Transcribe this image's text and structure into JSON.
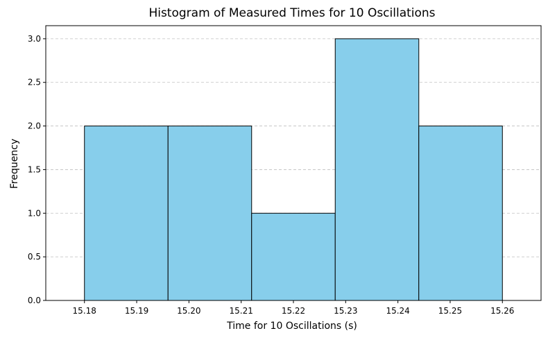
{
  "chart_data": {
    "type": "bar",
    "title": "Histogram of Measured Times for 10 Oscillations",
    "xlabel": "Time for 10 Oscillations (s)",
    "ylabel": "Frequency",
    "bins": [
      {
        "start": 15.18,
        "end": 15.196,
        "count": 2
      },
      {
        "start": 15.196,
        "end": 15.212,
        "count": 2
      },
      {
        "start": 15.212,
        "end": 15.228,
        "count": 1
      },
      {
        "start": 15.228,
        "end": 15.244,
        "count": 3
      },
      {
        "start": 15.244,
        "end": 15.26,
        "count": 2
      }
    ],
    "xlim": [
      15.1726,
      15.2674
    ],
    "ylim": [
      0,
      3.15
    ],
    "xticks": [
      "15.18",
      "15.19",
      "15.20",
      "15.21",
      "15.22",
      "15.23",
      "15.24",
      "15.25",
      "15.26"
    ],
    "yticks": [
      "0.0",
      "0.5",
      "1.0",
      "1.5",
      "2.0",
      "2.5",
      "3.0"
    ],
    "grid": "y dashed",
    "bar_color": "#87CEEB",
    "edge_color": "#000000"
  }
}
